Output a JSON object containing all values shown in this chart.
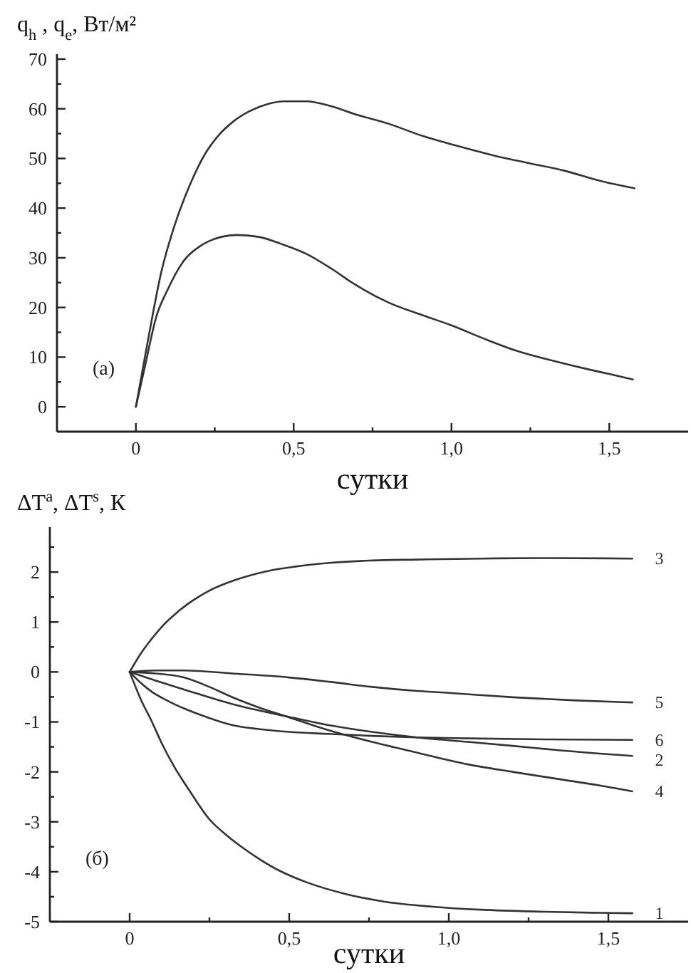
{
  "chart_data": [
    {
      "type": "line",
      "ylabel": "q$_{h}$ , q$_{e}$, Вт/м²",
      "xlabel": "сутки",
      "annotations": [
        "(а)"
      ],
      "xlim": [
        -0.25,
        1.75
      ],
      "xticks": [
        0,
        {
          "value": 0.25,
          "label": null
        },
        {
          "value": 0.5,
          "label": "0,5"
        },
        {
          "value": 0.75,
          "label": null
        },
        {
          "value": 1.0,
          "label": "1,0"
        },
        {
          "value": 1.25,
          "label": null
        },
        {
          "value": 1.5,
          "label": "1,5"
        }
      ],
      "ylim": [
        -5,
        71
      ],
      "yticks": [
        0,
        {
          "value": 5,
          "label": null
        },
        10,
        {
          "value": 15,
          "label": null
        },
        20,
        {
          "value": 25,
          "label": null
        },
        30,
        {
          "value": 35,
          "label": null
        },
        40,
        {
          "value": 45,
          "label": null
        },
        50,
        {
          "value": 55,
          "label": null
        },
        60,
        {
          "value": 65,
          "label": null
        },
        70
      ],
      "series": [
        {
          "color": "#333333",
          "x": [
            0,
            0.04,
            0.08,
            0.12,
            0.17,
            0.22,
            0.26,
            0.31,
            0.36,
            0.42,
            0.47,
            0.54,
            0.62,
            0.69,
            0.8,
            0.91,
            1.02,
            1.14,
            1.25,
            1.36,
            1.47,
            1.58
          ],
          "values": [
            0,
            14,
            27,
            36,
            44.5,
            51,
            54.5,
            57.5,
            59.5,
            61,
            61.5,
            61.5,
            60.5,
            59,
            57,
            54.5,
            52.5,
            50.5,
            49,
            47.5,
            45.5,
            44
          ]
        },
        {
          "color": "#333333",
          "x": [
            0,
            0.03,
            0.064,
            0.1,
            0.153,
            0.2,
            0.23,
            0.27,
            0.32,
            0.39,
            0.46,
            0.54,
            0.62,
            0.69,
            0.8,
            0.91,
            1.0,
            1.1,
            1.21,
            1.32,
            1.43,
            1.5,
            1.575
          ],
          "values": [
            0,
            8.5,
            18,
            23.5,
            29.5,
            32.2,
            33.3,
            34.2,
            34.6,
            34.2,
            32.8,
            30.8,
            27.8,
            24.8,
            21,
            18.4,
            16.4,
            13.8,
            11.2,
            9.3,
            7.6,
            6.6,
            5.5
          ]
        }
      ]
    },
    {
      "type": "line",
      "ylabel": "ΔT$^{a}$, ΔT$^{s}$, К",
      "xlabel": "сутки",
      "annotations": [
        "(б)"
      ],
      "xlim": [
        -0.25,
        1.75
      ],
      "xticks": [
        0,
        {
          "value": 0.25,
          "label": null
        },
        {
          "value": 0.5,
          "label": "0,5"
        },
        {
          "value": 0.75,
          "label": null
        },
        {
          "value": 1.0,
          "label": "1,0"
        },
        {
          "value": 1.25,
          "label": null
        },
        {
          "value": 1.5,
          "label": "1,5"
        }
      ],
      "ylim": [
        -5,
        2.9
      ],
      "yticks": [
        -5,
        {
          "value": -4.5,
          "label": null
        },
        -4,
        {
          "value": -3.5,
          "label": null
        },
        -3,
        {
          "value": -2.5,
          "label": null
        },
        -2,
        {
          "value": -1.5,
          "label": null
        },
        -1,
        {
          "value": -0.5,
          "label": null
        },
        0,
        {
          "value": 0.5,
          "label": null
        },
        1,
        {
          "value": 1.5,
          "label": null
        },
        2,
        {
          "value": 2.5,
          "label": null
        }
      ],
      "series": [
        {
          "name": "1",
          "color": "#333333",
          "x": [
            0,
            0.035,
            0.07,
            0.1,
            0.14,
            0.19,
            0.25,
            0.3,
            0.35,
            0.41,
            0.47,
            0.55,
            0.68,
            0.8,
            0.95,
            1.1,
            1.3,
            1.45,
            1.575
          ],
          "values": [
            0,
            -0.55,
            -1.0,
            -1.42,
            -1.9,
            -2.4,
            -2.95,
            -3.25,
            -3.5,
            -3.76,
            -3.98,
            -4.2,
            -4.45,
            -4.6,
            -4.7,
            -4.76,
            -4.8,
            -4.82,
            -4.83
          ]
        },
        {
          "name": "2",
          "color": "#333333",
          "x": [
            0,
            0.08,
            0.17,
            0.32,
            0.5,
            0.62,
            0.76,
            0.9,
            1.06,
            1.2,
            1.35,
            1.575
          ],
          "values": [
            0,
            -0.17,
            -0.35,
            -0.64,
            -0.9,
            -1.06,
            -1.2,
            -1.31,
            -1.4,
            -1.48,
            -1.57,
            -1.68
          ]
        },
        {
          "name": "3",
          "color": "#333333",
          "x": [
            0,
            0.03,
            0.06,
            0.1,
            0.15,
            0.2,
            0.25,
            0.3,
            0.37,
            0.44,
            0.52,
            0.62,
            0.75,
            0.9,
            1.1,
            1.3,
            1.575
          ],
          "values": [
            0,
            0.32,
            0.59,
            0.9,
            1.2,
            1.44,
            1.63,
            1.77,
            1.92,
            2.03,
            2.11,
            2.18,
            2.23,
            2.25,
            2.27,
            2.28,
            2.27
          ]
        },
        {
          "name": "4",
          "color": "#333333",
          "x": [
            0,
            0.08,
            0.17,
            0.25,
            0.32,
            0.4,
            0.5,
            0.62,
            0.76,
            0.91,
            1.06,
            1.2,
            1.35,
            1.47,
            1.575
          ],
          "values": [
            0,
            -0.03,
            -0.11,
            -0.3,
            -0.5,
            -0.7,
            -0.91,
            -1.16,
            -1.4,
            -1.63,
            -1.85,
            -2.0,
            -2.15,
            -2.27,
            -2.39
          ]
        },
        {
          "name": "5",
          "color": "#333333",
          "x": [
            0,
            0.08,
            0.17,
            0.32,
            0.5,
            0.63,
            0.76,
            0.9,
            1.0,
            1.21,
            1.4,
            1.575
          ],
          "values": [
            0,
            0.03,
            0.03,
            -0.03,
            -0.11,
            -0.2,
            -0.3,
            -0.38,
            -0.42,
            -0.51,
            -0.57,
            -0.61
          ]
        },
        {
          "name": "6",
          "color": "#333333",
          "x": [
            0,
            0.035,
            0.07,
            0.12,
            0.17,
            0.24,
            0.32,
            0.4,
            0.5,
            0.62,
            0.76,
            0.9,
            1.06,
            1.3,
            1.575
          ],
          "values": [
            0,
            -0.22,
            -0.4,
            -0.58,
            -0.73,
            -0.9,
            -1.06,
            -1.14,
            -1.2,
            -1.24,
            -1.28,
            -1.31,
            -1.33,
            -1.35,
            -1.36
          ]
        }
      ]
    }
  ]
}
